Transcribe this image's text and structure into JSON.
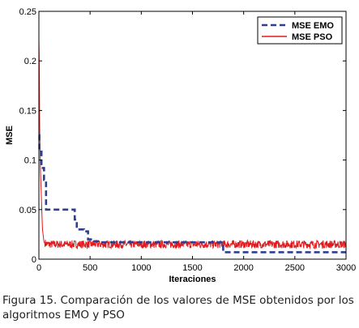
{
  "caption": "Figura 15. Comparación de los valores de MSE obtenidos por los algoritmos EMO y PSO",
  "chart_data": {
    "type": "line",
    "xlabel": "Iteraciones",
    "ylabel": "MSE",
    "xlim": [
      0,
      3000
    ],
    "ylim": [
      0,
      0.25
    ],
    "xticks": [
      0,
      500,
      1000,
      1500,
      2000,
      2500,
      3000
    ],
    "yticks": [
      0,
      0.05,
      0.1,
      0.15,
      0.2,
      0.25
    ],
    "xtick_labels": [
      "0",
      "500",
      "1000",
      "1500",
      "2000",
      "2500",
      "3000"
    ],
    "ytick_labels": [
      "0",
      "0.05",
      "0.1",
      "0.15",
      "0.2",
      "0.25"
    ],
    "grid": false,
    "legend_position": "top-right",
    "series": [
      {
        "name": "MSE EMO",
        "color": "#2e3f8f",
        "style": "dashed",
        "x": [
          0,
          5,
          5,
          25,
          25,
          50,
          50,
          70,
          70,
          140,
          140,
          350,
          350,
          370,
          370,
          440,
          440,
          480,
          480,
          520,
          520,
          600,
          600,
          1800,
          1800,
          3000
        ],
        "y": [
          0.125,
          0.125,
          0.11,
          0.11,
          0.092,
          0.092,
          0.08,
          0.08,
          0.05,
          0.05,
          0.05,
          0.05,
          0.04,
          0.04,
          0.03,
          0.03,
          0.028,
          0.028,
          0.02,
          0.02,
          0.018,
          0.018,
          0.017,
          0.017,
          0.007,
          0.007
        ]
      },
      {
        "name": "MSE PSO",
        "color": "#e31a1c",
        "style": "solid",
        "noisy": true,
        "x": [
          0,
          3,
          8,
          15,
          25,
          35,
          50,
          80,
          3000
        ],
        "y": [
          0.222,
          0.2,
          0.13,
          0.09,
          0.06,
          0.03,
          0.017,
          0.015,
          0.015
        ],
        "noise_amplitude": 0.004
      }
    ]
  }
}
